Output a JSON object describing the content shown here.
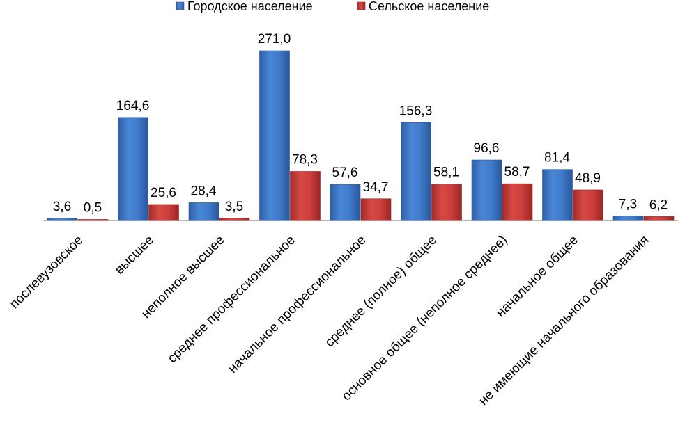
{
  "chart_data": {
    "type": "bar",
    "title": "",
    "xlabel": "",
    "ylabel": "",
    "ylim": [
      0,
      271
    ],
    "grid": false,
    "legend_position": "top",
    "categories": [
      "послевузовское",
      "высшее",
      "неполное высшее",
      "среднее профессиональное",
      "начальное профессиональное",
      "среднее (полное) общее",
      "основное общее (неполное среднее)",
      "начальное общее",
      "не имеющие начального образования"
    ],
    "series": [
      {
        "name": "Городское население",
        "color": "#3a73c4",
        "values": [
          3.6,
          164.6,
          28.4,
          271.0,
          57.6,
          156.3,
          96.6,
          81.4,
          7.3
        ],
        "labels": [
          "3,6",
          "164,6",
          "28,4",
          "271,0",
          "57,6",
          "156,3",
          "96,6",
          "81,4",
          "7,3"
        ]
      },
      {
        "name": "Сельское население",
        "color": "#c83a37",
        "values": [
          0.5,
          25.6,
          3.5,
          78.3,
          34.7,
          58.1,
          58.7,
          48.9,
          6.2
        ],
        "labels": [
          "0,5",
          "25,6",
          "3,5",
          "78,3",
          "34,7",
          "58,1",
          "58,7",
          "48,9",
          "6,2"
        ]
      }
    ]
  }
}
